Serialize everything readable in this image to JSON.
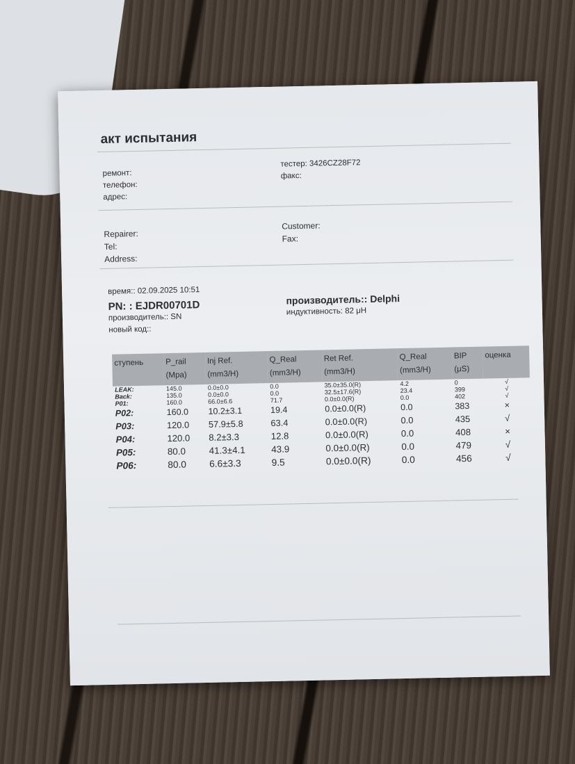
{
  "document": {
    "title": "акт испытания",
    "ru_left": [
      "ремонт:",
      "телефон:",
      "адрес:"
    ],
    "ru_right": [
      "тестер: 3426CZ28F72",
      "факс:"
    ],
    "en_left": [
      "Repairer:",
      "Tel:",
      "Address:"
    ],
    "en_right": [
      "Customer:",
      "Fax:"
    ],
    "time": "время:: 02.09.2025 10:51",
    "pn": "PN:  : EJDR00701D",
    "manufacturer_sn": "производитель:: SN",
    "new_code": "новый код::",
    "manufacturer": "производитель:: Delphi",
    "inductance": "индуктивность: 82 μH"
  },
  "table": {
    "headers": [
      {
        "l1": "ступень",
        "l2": ""
      },
      {
        "l1": "P_rail",
        "l2": "(Mpa)"
      },
      {
        "l1": "Inj Ref.",
        "l2": "(mm3/H)"
      },
      {
        "l1": "Q_Real",
        "l2": "(mm3/H)"
      },
      {
        "l1": "Ret Ref.",
        "l2": "(mm3/H)"
      },
      {
        "l1": "Q_Real",
        "l2": "(mm3/H)"
      },
      {
        "l1": "BIP",
        "l2": "(μS)"
      },
      {
        "l1": "оценка",
        "l2": ""
      }
    ],
    "rows": [
      [
        "LEAK:",
        "145.0",
        "0.0±0.0",
        "0.0",
        "35.0±35.0(R)",
        "4.2",
        "0",
        "√"
      ],
      [
        "Back:",
        "135.0",
        "0.0±0.0",
        "0.0",
        "32.5±17.6(R)",
        "23.4",
        "399",
        "√"
      ],
      [
        "P01:",
        "160.0",
        "66.0±6.6",
        "71.7",
        "0.0±0.0(R)",
        "0.0",
        "402",
        "√"
      ],
      [
        "P02:",
        "160.0",
        "10.2±3.1",
        "19.4",
        "0.0±0.0(R)",
        "0.0",
        "383",
        "×"
      ],
      [
        "P03:",
        "120.0",
        "57.9±5.8",
        "63.4",
        "0.0±0.0(R)",
        "0.0",
        "435",
        "√"
      ],
      [
        "P04:",
        "120.0",
        "8.2±3.3",
        "12.8",
        "0.0±0.0(R)",
        "0.0",
        "408",
        "×"
      ],
      [
        "P05:",
        "80.0",
        "41.3±4.1",
        "43.9",
        "0.0±0.0(R)",
        "0.0",
        "479",
        "√"
      ],
      [
        "P06:",
        "80.0",
        "6.6±3.3",
        "9.5",
        "0.0±0.0(R)",
        "0.0",
        "456",
        "√"
      ]
    ]
  }
}
